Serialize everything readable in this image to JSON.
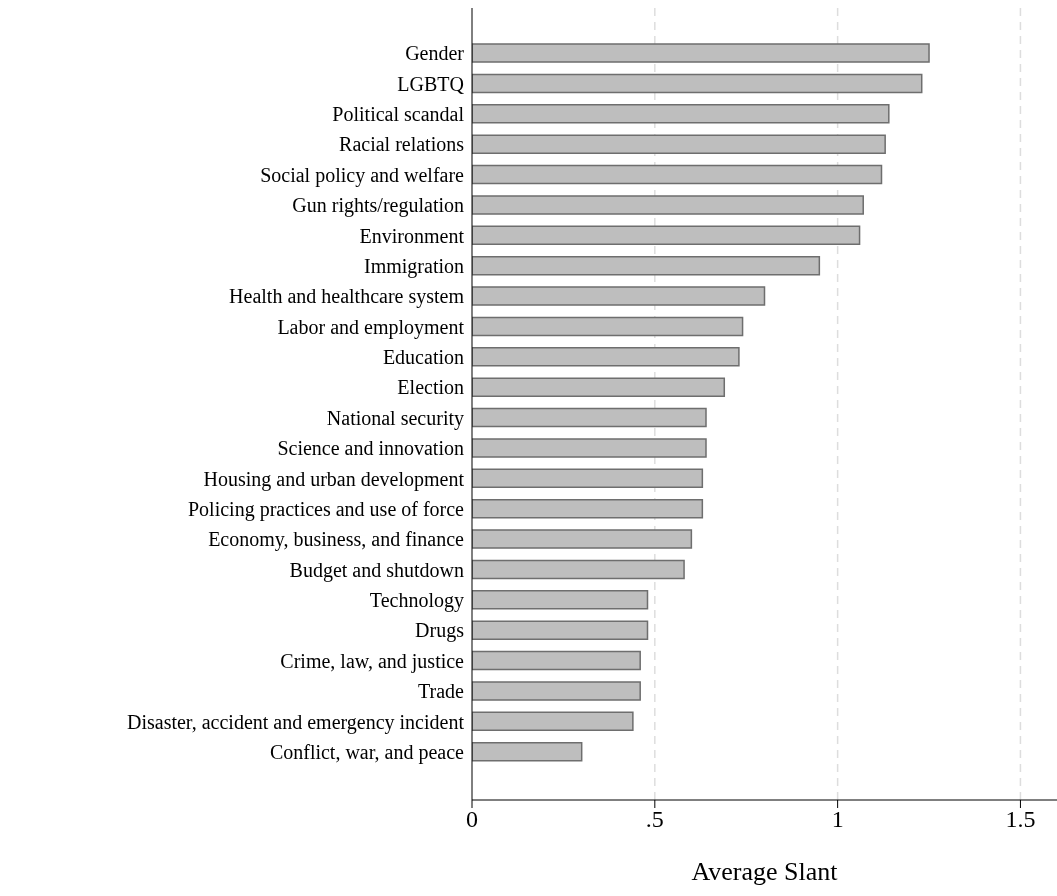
{
  "chart_data": {
    "type": "bar",
    "orientation": "horizontal",
    "xlabel": "Average Slant",
    "categories": [
      "Gender",
      "LGBTQ",
      "Political scandal",
      "Racial relations",
      "Social policy and welfare",
      "Gun rights/regulation",
      "Environment",
      "Immigration",
      "Health and healthcare system",
      "Labor and employment",
      "Education",
      "Election",
      "National security",
      "Science and innovation",
      "Housing and urban development",
      "Policing practices and use of force",
      "Economy, business, and finance",
      "Budget and shutdown",
      "Technology",
      "Drugs",
      "Crime, law, and justice",
      "Trade",
      "Disaster, accident and emergency incident",
      "Conflict, war, and peace"
    ],
    "values": [
      1.25,
      1.23,
      1.14,
      1.13,
      1.12,
      1.07,
      1.06,
      0.95,
      0.8,
      0.74,
      0.73,
      0.69,
      0.64,
      0.64,
      0.63,
      0.63,
      0.6,
      0.58,
      0.48,
      0.48,
      0.46,
      0.46,
      0.44,
      0.3
    ],
    "color": "#bebebe",
    "xlim": [
      0,
      1.6
    ],
    "xticks": [
      0,
      {
        "value": 0.5,
        "label": ".5"
      },
      1,
      1.5
    ],
    "grid": "x"
  }
}
